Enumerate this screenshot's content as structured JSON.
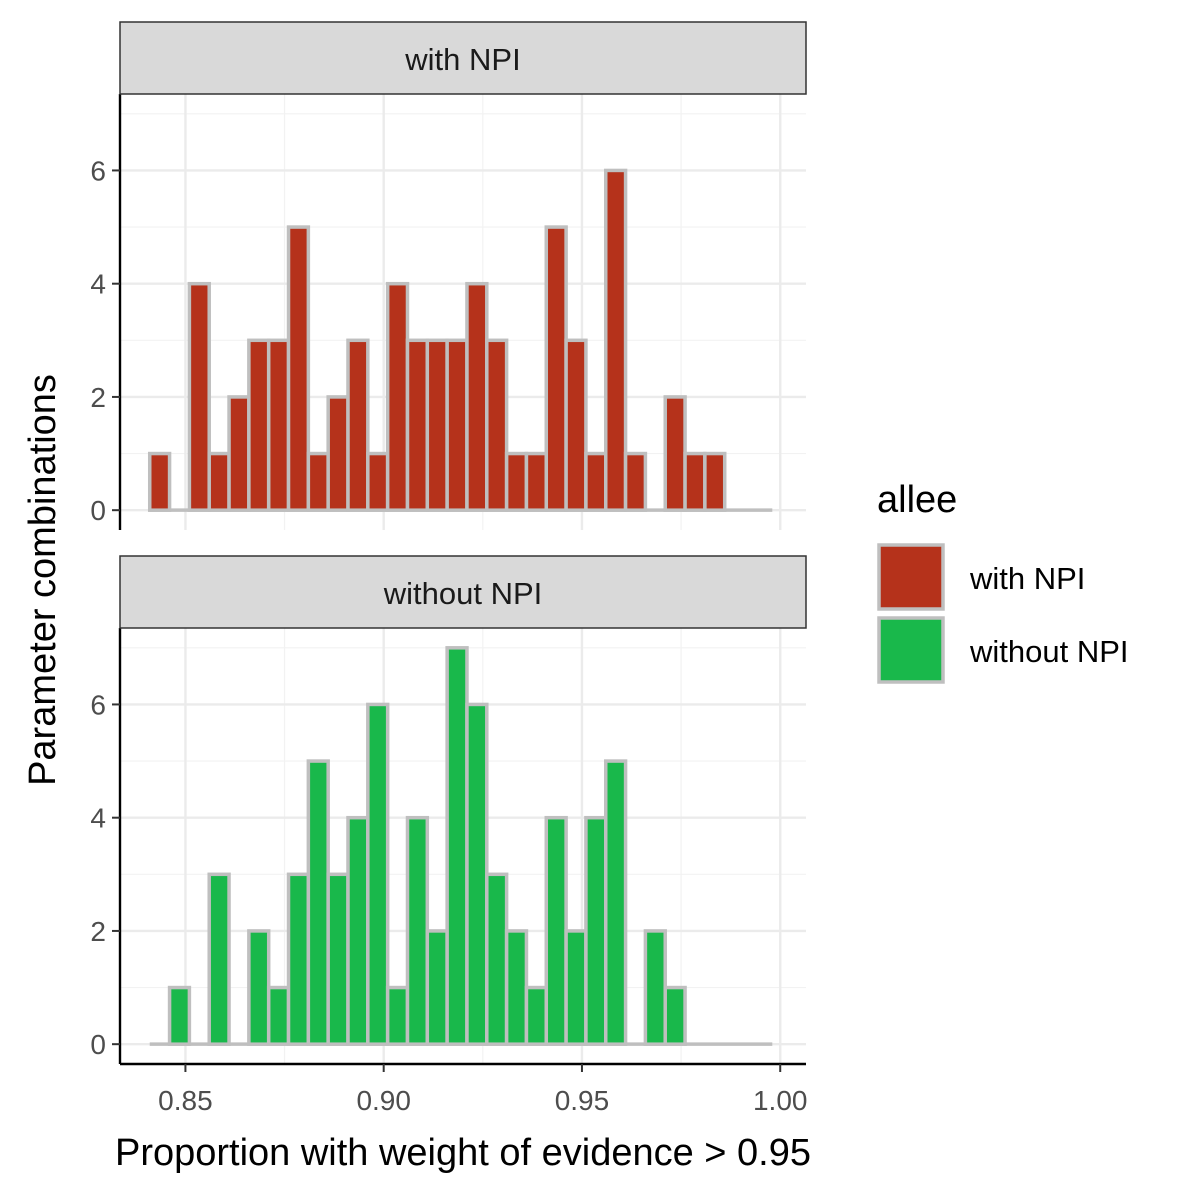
{
  "chart_data": {
    "type": "bar",
    "xlabel": "Proportion with weight of evidence > 0.95",
    "ylabel": "Parameter combinations",
    "xlim": [
      0.8335,
      1.0065
    ],
    "ylim": [
      -0.35,
      7.35
    ],
    "x_ticks": [
      0.85,
      0.9,
      0.95,
      1.0
    ],
    "x_tick_labels": [
      "0.85",
      "0.90",
      "0.95",
      "1.00"
    ],
    "y_ticks": [
      0,
      2,
      4,
      6
    ],
    "y_tick_labels": [
      "0",
      "2",
      "4",
      "6"
    ],
    "grid": true,
    "bin_start": 0.841,
    "bin_width": 0.005,
    "legend": {
      "title": "allee",
      "position": "right",
      "entries": [
        {
          "label": "with NPI",
          "color": "#b5321b"
        },
        {
          "label": "without NPI",
          "color": "#19b84b"
        }
      ]
    },
    "series": [
      {
        "name": "with NPI",
        "color": "#b5321b",
        "values": [
          1,
          0,
          4,
          1,
          2,
          3,
          3,
          5,
          1,
          2,
          3,
          1,
          4,
          3,
          3,
          3,
          4,
          3,
          1,
          1,
          5,
          3,
          1,
          6,
          1,
          0,
          2,
          1,
          1,
          0,
          0,
          0
        ]
      },
      {
        "name": "without NPI",
        "color": "#19b84b",
        "values": [
          0,
          1,
          0,
          3,
          0,
          2,
          1,
          3,
          5,
          3,
          4,
          6,
          1,
          4,
          2,
          7,
          6,
          3,
          2,
          1,
          4,
          2,
          4,
          5,
          0,
          2,
          1,
          0,
          0,
          0,
          0,
          0
        ]
      }
    ]
  }
}
